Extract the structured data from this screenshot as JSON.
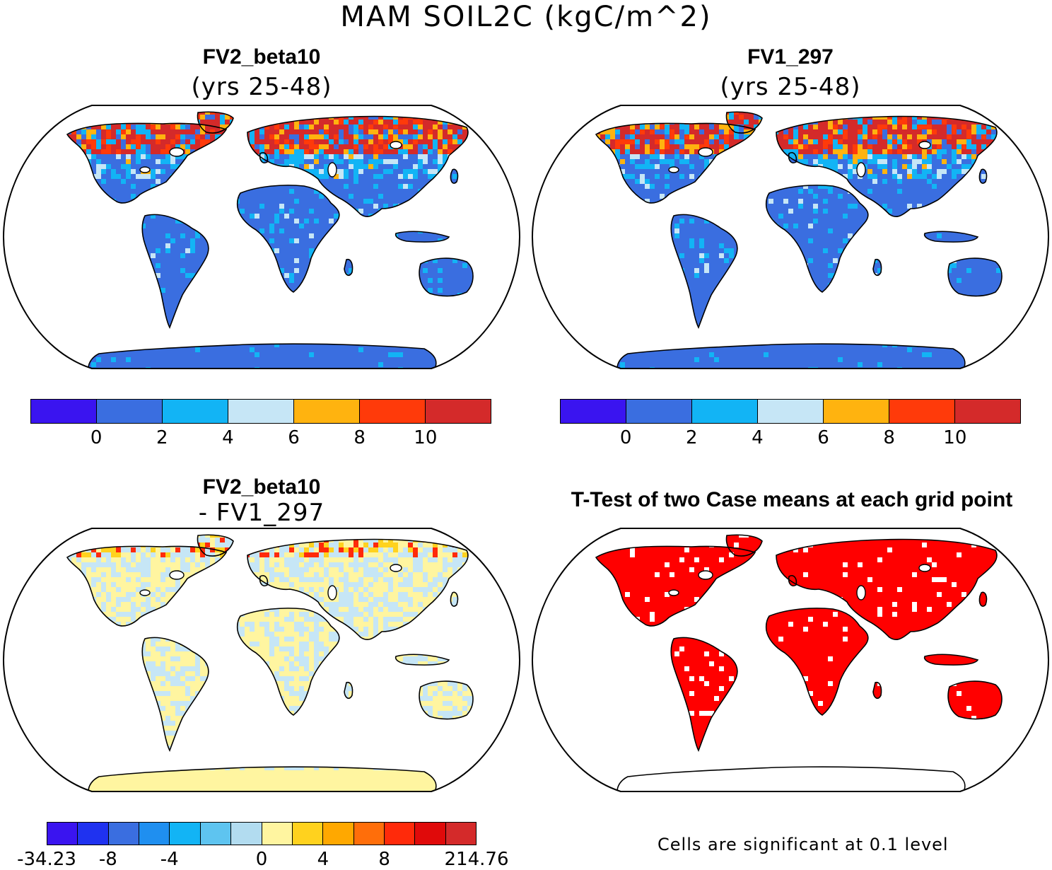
{
  "title": "MAM SOIL2C (kgC/m^2)",
  "panels": [
    {
      "title": "FV2_beta10",
      "subtitle": "(yrs 25-48)"
    },
    {
      "title": "FV1_297",
      "subtitle": "(yrs 25-48)"
    },
    {
      "title": "FV2_beta10",
      "subtitle": "- FV1_297"
    },
    {
      "title": "T-Test of two Case means at each grid point",
      "subtitle": ""
    }
  ],
  "colorbar_abs": {
    "colors": [
      "#3a14f0",
      "#3a6ee0",
      "#12b4f5",
      "#c6e6f6",
      "#ffb30f",
      "#ff3a0a",
      "#d42a2a"
    ],
    "ticks": [
      "0",
      "2",
      "4",
      "6",
      "8",
      "10"
    ]
  },
  "colorbar_diff": {
    "colors": [
      "#3a14f0",
      "#1f32f0",
      "#3a6ee0",
      "#1f8ff0",
      "#12b4f5",
      "#5ec4f0",
      "#b2dcf0",
      "#fff5a0",
      "#ffd21e",
      "#ffa800",
      "#ff6e0a",
      "#ff2a0a",
      "#e00a0a",
      "#d42a2a"
    ],
    "ticks": [
      "-34.23",
      "-8",
      "-4",
      "0",
      "4",
      "8",
      "214.76"
    ]
  },
  "note": "Cells are significant at 0.1 level",
  "map_colors": {
    "land_abs": "#3a6ee0",
    "land_diff": "#fff5a0",
    "land_diff_alt": "#c6e6f6",
    "land_ttest": "#ff0000",
    "high_lat": "#d42a2a",
    "boreal": "#12b4f5"
  }
}
